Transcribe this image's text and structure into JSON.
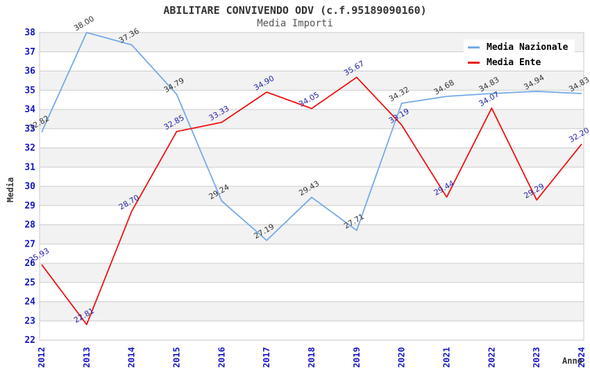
{
  "chart_data": {
    "type": "line",
    "title": "ABILITARE CONVIVENDO ODV (c.f.95189090160)",
    "subtitle": "Media Importi",
    "xlabel": "Anno",
    "ylabel": "Media",
    "ylim": [
      22,
      38
    ],
    "ytick_step": 1,
    "grid": "horizontal",
    "band_fill": "alternating",
    "legend_position": "top-right",
    "categories": [
      "2012",
      "2013",
      "2014",
      "2015",
      "2016",
      "2017",
      "2018",
      "2019",
      "2020",
      "2021",
      "2022",
      "2023",
      "2024"
    ],
    "series": [
      {
        "name": "Media Nazionale",
        "color": "#74a9e6",
        "label_color": "#333333",
        "values": [
          32.82,
          38.0,
          37.36,
          34.79,
          29.24,
          27.19,
          29.43,
          27.71,
          34.32,
          34.68,
          34.83,
          34.94,
          34.83
        ]
      },
      {
        "name": "Media Ente",
        "color": "#ee1111",
        "label_color": "#2424aa",
        "values": [
          25.93,
          22.81,
          28.7,
          32.85,
          33.33,
          34.9,
          34.05,
          35.67,
          33.19,
          29.44,
          34.07,
          29.29,
          32.2
        ]
      }
    ]
  },
  "colors": {
    "axis_tick_label": "#1414c8",
    "gridline": "#cccccc",
    "band": "#f2f2f2",
    "plot_border": "#c8c8c8",
    "background": "#ffffff"
  }
}
